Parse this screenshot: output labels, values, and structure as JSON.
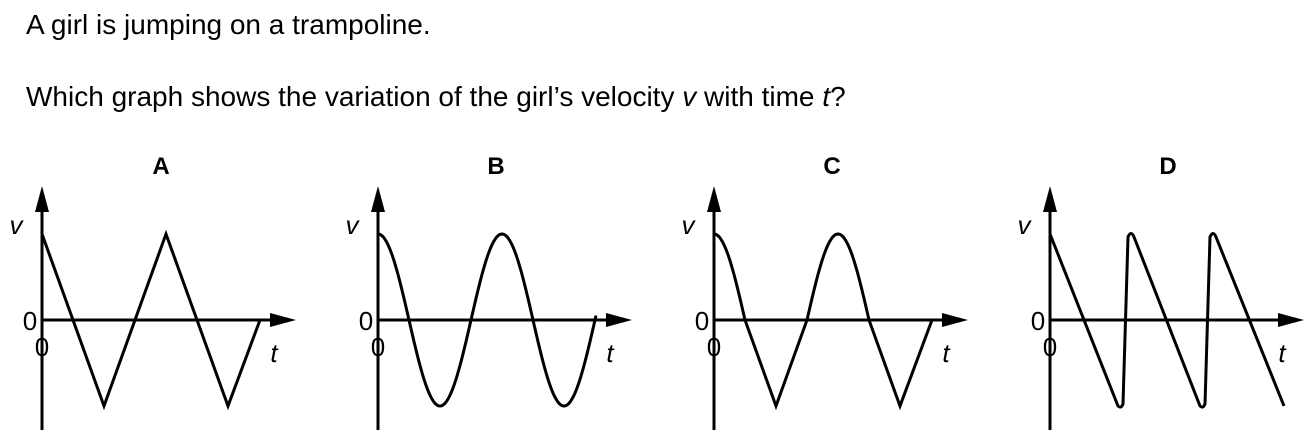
{
  "question": {
    "line1": "A girl is jumping on a trampoline.",
    "line2_before": "Which graph shows the variation of the girl’s velocity ",
    "line2_v": "v",
    "line2_middle": " with time ",
    "line2_t": "t",
    "line2_after": "?"
  },
  "graphs": [
    {
      "label": "A",
      "y_axis_label": "v",
      "x_axis_label": "t",
      "origin_y_label": "0",
      "origin_x_label": "0",
      "shape": "triangle wave"
    },
    {
      "label": "B",
      "y_axis_label": "v",
      "x_axis_label": "t",
      "origin_y_label": "0",
      "origin_x_label": "0",
      "shape": "cosine wave"
    },
    {
      "label": "C",
      "y_axis_label": "v",
      "x_axis_label": "t",
      "origin_y_label": "0",
      "origin_x_label": "0",
      "shape": "rounded peaks, sharp troughs"
    },
    {
      "label": "D",
      "y_axis_label": "v",
      "x_axis_label": "t",
      "origin_y_label": "0",
      "origin_x_label": "0",
      "shape": "sawtooth"
    }
  ]
}
